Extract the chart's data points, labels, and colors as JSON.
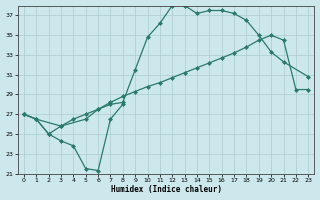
{
  "xlabel": "Humidex (Indice chaleur)",
  "bg_color": "#cce8ec",
  "grid_color": "#aacccc",
  "line_color": "#2a7a6a",
  "xlim": [
    -0.5,
    23.5
  ],
  "ylim": [
    21,
    38
  ],
  "yticks": [
    21,
    23,
    25,
    27,
    29,
    31,
    33,
    35,
    37
  ],
  "xticks": [
    0,
    1,
    2,
    3,
    4,
    5,
    6,
    7,
    8,
    9,
    10,
    11,
    12,
    13,
    14,
    15,
    16,
    17,
    18,
    19,
    20,
    21,
    22,
    23
  ],
  "curve1_x": [
    0,
    1,
    2,
    3,
    4,
    5,
    6,
    7,
    8
  ],
  "curve1_y": [
    27.0,
    26.5,
    25.0,
    24.3,
    23.8,
    21.5,
    21.3,
    26.5,
    28.0
  ],
  "curve2_x": [
    0,
    1,
    2,
    3,
    4,
    5,
    6,
    7,
    8,
    9,
    10,
    11,
    12,
    13,
    14,
    15,
    16,
    17,
    18,
    19,
    20,
    21,
    22,
    23
  ],
  "curve2_y": [
    27.0,
    26.5,
    25.0,
    25.8,
    26.5,
    27.0,
    27.5,
    28.2,
    28.8,
    29.3,
    29.8,
    30.2,
    30.7,
    31.2,
    31.7,
    32.2,
    32.7,
    33.2,
    33.8,
    34.5,
    35.0,
    34.5,
    29.5,
    29.5
  ],
  "curve3_x": [
    0,
    1,
    3,
    5,
    6,
    7,
    8,
    9,
    10,
    11,
    12,
    13,
    14,
    15,
    16,
    17,
    18,
    19,
    20,
    21,
    23
  ],
  "curve3_y": [
    27.0,
    26.5,
    25.8,
    26.5,
    27.5,
    28.0,
    28.2,
    31.5,
    34.8,
    36.2,
    38.0,
    38.0,
    37.2,
    37.5,
    37.5,
    37.2,
    36.5,
    35.0,
    33.3,
    32.3,
    30.8
  ]
}
